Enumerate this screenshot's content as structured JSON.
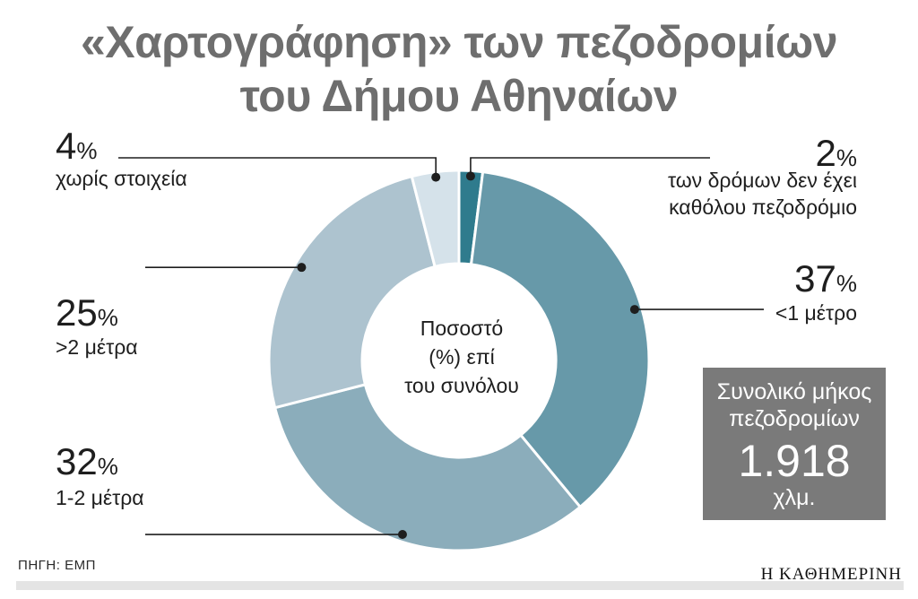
{
  "header": {
    "title_line1": "«Χαρτογράφηση» των πεζοδρομίων",
    "title_line2": "του Δήμου Αθηναίων"
  },
  "chart_data": {
    "type": "pie",
    "title": "«Χαρτογράφηση» των πεζοδρομίων του Δήμου Αθηναίων",
    "center_label": [
      "Ποσοστό",
      "(%) επί",
      "του συνόλου"
    ],
    "unit": "%",
    "slices": [
      {
        "value": 2,
        "label": "2",
        "desc": "των δρόμων δεν έχει καθόλου πεζοδρόμιο",
        "desc_lines": [
          "των δρόμων δεν έχει",
          "καθόλου πεζοδρόμιο"
        ],
        "color": "#2f7b8d"
      },
      {
        "value": 37,
        "label": "37",
        "desc": "<1 μέτρο",
        "desc_lines": [
          "<1 μέτρο"
        ],
        "color": "#6799a9"
      },
      {
        "value": 32,
        "label": "32",
        "desc": "1-2 μέτρα",
        "desc_lines": [
          "1-2 μέτρα"
        ],
        "color": "#8badbb"
      },
      {
        "value": 25,
        "label": "25",
        "desc": ">2 μέτρα",
        "desc_lines": [
          ">2 μέτρα"
        ],
        "color": "#adc3cf"
      },
      {
        "value": 4,
        "label": "4",
        "desc": "χωρίς στοιχεία",
        "desc_lines": [
          "χωρίς στοιχεία"
        ],
        "color": "#d5e2ea"
      }
    ]
  },
  "total": {
    "line1": "Συνολικό μήκος",
    "line2": "πεζοδρομίων",
    "value": "1.918",
    "unit": "χλμ."
  },
  "footer": {
    "source": "ΠΗΓΗ: ΕΜΠ",
    "brand": "Η ΚΑΘΗΜΕΡΙΝΗ"
  },
  "colors": {
    "title": "#6e6e6e",
    "box": "#7a7a7a"
  }
}
